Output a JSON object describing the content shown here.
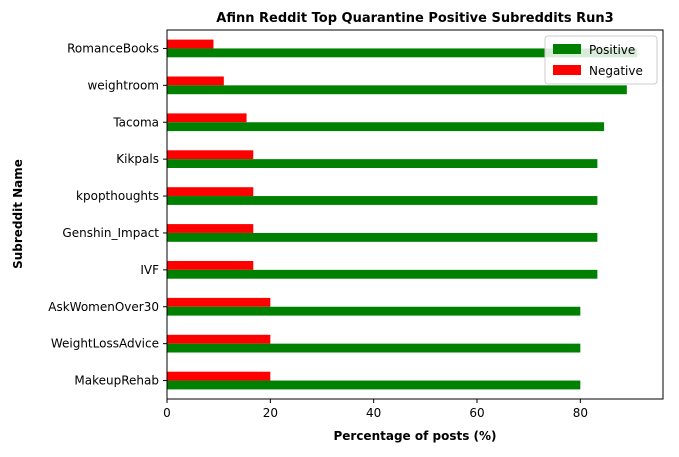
{
  "chart_data": {
    "type": "bar",
    "orientation": "horizontal",
    "title": "Afinn Reddit Top Quarantine Positive Subreddits Run3",
    "xlabel": "Percentage of posts (%)",
    "ylabel": "Subreddit Name",
    "xlim": [
      0,
      96
    ],
    "xticks": [
      0,
      20,
      40,
      60,
      80
    ],
    "grid": false,
    "legend_position": "top-right",
    "categories": [
      "RomanceBooks",
      "weightroom",
      "Tacoma",
      "Kikpals",
      "kpopthoughts",
      "Genshin_Impact",
      "IVF",
      "AskWomenOver30",
      "WeightLossAdvice",
      "MakeupRehab"
    ],
    "series": [
      {
        "name": "Positive",
        "color": "#008000",
        "values": [
          91,
          89,
          84.6,
          83.3,
          83.3,
          83.3,
          83.3,
          80,
          80,
          80
        ]
      },
      {
        "name": "Negative",
        "color": "#ff0000",
        "values": [
          9,
          11,
          15.4,
          16.7,
          16.7,
          16.7,
          16.7,
          20,
          20,
          20
        ]
      }
    ]
  }
}
